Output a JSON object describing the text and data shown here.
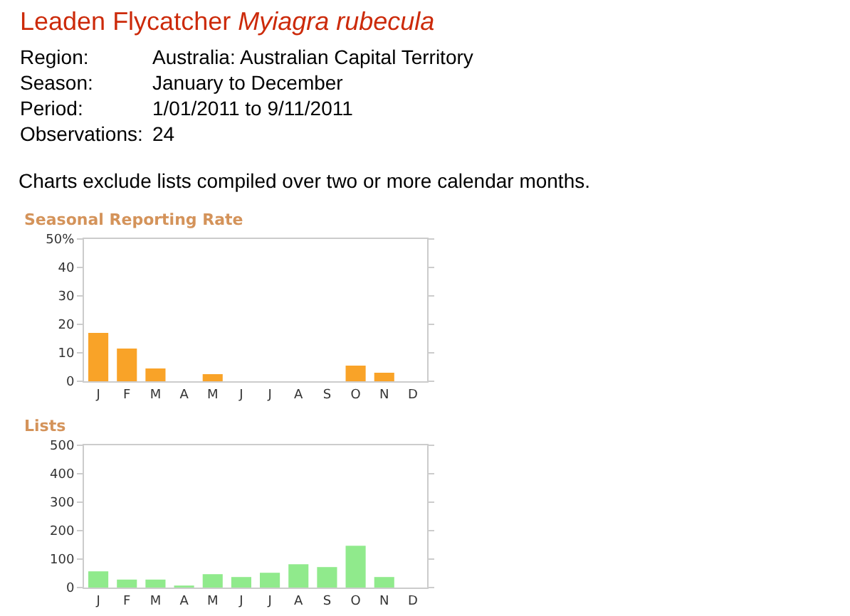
{
  "chart_data": [
    {
      "type": "other",
      "title": "Leaden Flycatcher",
      "subtitle": "Myiagra rubecula",
      "annotations": [
        "Region:",
        "Australia: Australian Capital Territory",
        "Season:",
        "January to December",
        "Period:",
        "1/01/2011 to 9/11/2011",
        "Observations:",
        "24",
        "Charts exclude lists compiled over two or more calendar months."
      ]
    },
    {
      "type": "bar",
      "title": "Seasonal Reporting Rate",
      "categories": [
        "J",
        "F",
        "M",
        "A",
        "M",
        "J",
        "J",
        "A",
        "S",
        "O",
        "N",
        "D"
      ],
      "values": [
        17,
        11.5,
        4.5,
        0,
        2.5,
        0,
        0,
        0,
        0,
        5.5,
        3,
        0
      ],
      "color": "#f9a328",
      "ylim": [
        0,
        50
      ],
      "yticks": [
        0,
        10,
        20,
        30,
        40,
        {
          "value": 50,
          "label": "50%"
        }
      ]
    },
    {
      "type": "bar",
      "title": "Lists",
      "categories": [
        "J",
        "F",
        "M",
        "A",
        "M",
        "J",
        "J",
        "A",
        "S",
        "O",
        "N",
        "D"
      ],
      "values": [
        57,
        28,
        28,
        7,
        47,
        37,
        52,
        82,
        72,
        147,
        37,
        0
      ],
      "color": "#90ea8c",
      "ylim": [
        0,
        500
      ],
      "yticks": [
        0,
        100,
        200,
        300,
        400,
        500
      ]
    }
  ]
}
